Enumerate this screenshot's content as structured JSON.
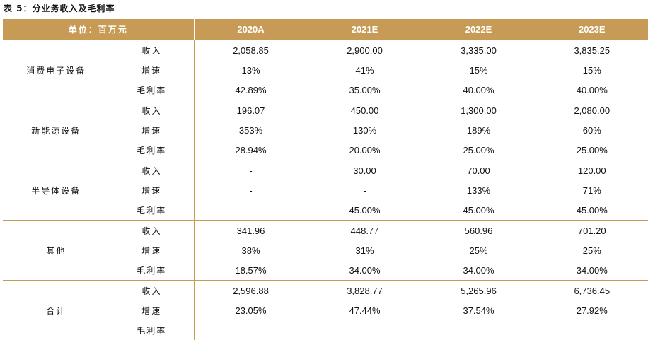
{
  "title": "表 5：分业务收入及毛利率",
  "header": {
    "unit_label": "单位：百万元",
    "years": [
      "2020A",
      "2021E",
      "2022E",
      "2023E"
    ]
  },
  "segments": [
    {
      "name": "消费电子设备",
      "rows": [
        {
          "metric": "收入",
          "values": [
            "2,058.85",
            "2,900.00",
            "3,335.00",
            "3,835.25"
          ]
        },
        {
          "metric": "增速",
          "values": [
            "13%",
            "41%",
            "15%",
            "15%"
          ]
        },
        {
          "metric": "毛利率",
          "values": [
            "42.89%",
            "35.00%",
            "40.00%",
            "40.00%"
          ]
        }
      ]
    },
    {
      "name": "新能源设备",
      "rows": [
        {
          "metric": "收入",
          "values": [
            "196.07",
            "450.00",
            "1,300.00",
            "2,080.00"
          ]
        },
        {
          "metric": "增速",
          "values": [
            "353%",
            "130%",
            "189%",
            "60%"
          ]
        },
        {
          "metric": "毛利率",
          "values": [
            "28.94%",
            "20.00%",
            "25.00%",
            "25.00%"
          ]
        }
      ]
    },
    {
      "name": "半导体设备",
      "rows": [
        {
          "metric": "收入",
          "values": [
            "-",
            "30.00",
            "70.00",
            "120.00"
          ]
        },
        {
          "metric": "增速",
          "values": [
            "-",
            "-",
            "133%",
            "71%"
          ]
        },
        {
          "metric": "毛利率",
          "values": [
            "-",
            "45.00%",
            "45.00%",
            "45.00%"
          ]
        }
      ]
    },
    {
      "name": "其他",
      "rows": [
        {
          "metric": "收入",
          "values": [
            "341.96",
            "448.77",
            "560.96",
            "701.20"
          ]
        },
        {
          "metric": "增速",
          "values": [
            "38%",
            "31%",
            "25%",
            "25%"
          ]
        },
        {
          "metric": "毛利率",
          "values": [
            "18.57%",
            "34.00%",
            "34.00%",
            "34.00%"
          ]
        }
      ]
    },
    {
      "name": "合计",
      "rows": [
        {
          "metric": "收入",
          "values": [
            "2,596.88",
            "3,828.77",
            "5,265.96",
            "6,736.45"
          ]
        },
        {
          "metric": "增速",
          "values": [
            "23.05%",
            "47.44%",
            "37.54%",
            "27.92%"
          ]
        },
        {
          "metric": "毛利率",
          "values": [
            "",
            "",
            "",
            ""
          ]
        }
      ]
    }
  ]
}
